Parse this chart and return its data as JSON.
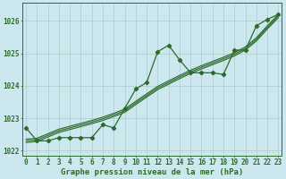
{
  "xlabel": "Graphe pression niveau de la mer (hPa)",
  "hours": [
    0,
    1,
    2,
    3,
    4,
    5,
    6,
    7,
    8,
    9,
    10,
    11,
    12,
    13,
    14,
    15,
    16,
    17,
    18,
    19,
    20,
    21,
    22,
    23
  ],
  "main_line": [
    1022.7,
    1022.3,
    1022.3,
    1022.4,
    1022.4,
    1022.4,
    1022.4,
    1022.8,
    1022.7,
    1023.3,
    1023.9,
    1024.1,
    1025.05,
    1025.25,
    1024.8,
    1024.4,
    1024.4,
    1024.4,
    1024.35,
    1025.1,
    1025.1,
    1025.85,
    1026.05,
    1026.2
  ],
  "smooth_line1": [
    1022.25,
    1022.28,
    1022.42,
    1022.56,
    1022.65,
    1022.74,
    1022.83,
    1022.93,
    1023.05,
    1023.18,
    1023.42,
    1023.65,
    1023.88,
    1024.05,
    1024.22,
    1024.38,
    1024.52,
    1024.65,
    1024.78,
    1024.92,
    1025.1,
    1025.38,
    1025.75,
    1026.1
  ],
  "smooth_line2": [
    1022.3,
    1022.33,
    1022.47,
    1022.61,
    1022.7,
    1022.79,
    1022.88,
    1022.98,
    1023.1,
    1023.23,
    1023.47,
    1023.7,
    1023.93,
    1024.1,
    1024.27,
    1024.43,
    1024.57,
    1024.7,
    1024.83,
    1024.97,
    1025.15,
    1025.43,
    1025.8,
    1026.15
  ],
  "smooth_line3": [
    1022.35,
    1022.38,
    1022.52,
    1022.66,
    1022.75,
    1022.84,
    1022.93,
    1023.03,
    1023.15,
    1023.28,
    1023.52,
    1023.75,
    1023.98,
    1024.15,
    1024.32,
    1024.48,
    1024.62,
    1024.75,
    1024.88,
    1025.02,
    1025.2,
    1025.48,
    1025.85,
    1026.2
  ],
  "bg_color": "#cce8ee",
  "grid_color": "#aacccc",
  "line_color": "#2d6b2d",
  "ylim": [
    1021.85,
    1026.55
  ],
  "yticks": [
    1022,
    1023,
    1024,
    1025,
    1026
  ],
  "xticks": [
    0,
    1,
    2,
    3,
    4,
    5,
    6,
    7,
    8,
    9,
    10,
    11,
    12,
    13,
    14,
    15,
    16,
    17,
    18,
    19,
    20,
    21,
    22,
    23
  ],
  "xlabel_fontsize": 6.5,
  "tick_fontsize": 5.5,
  "linewidth": 0.9,
  "marker_size": 2.2,
  "smooth_linewidth": 0.85
}
